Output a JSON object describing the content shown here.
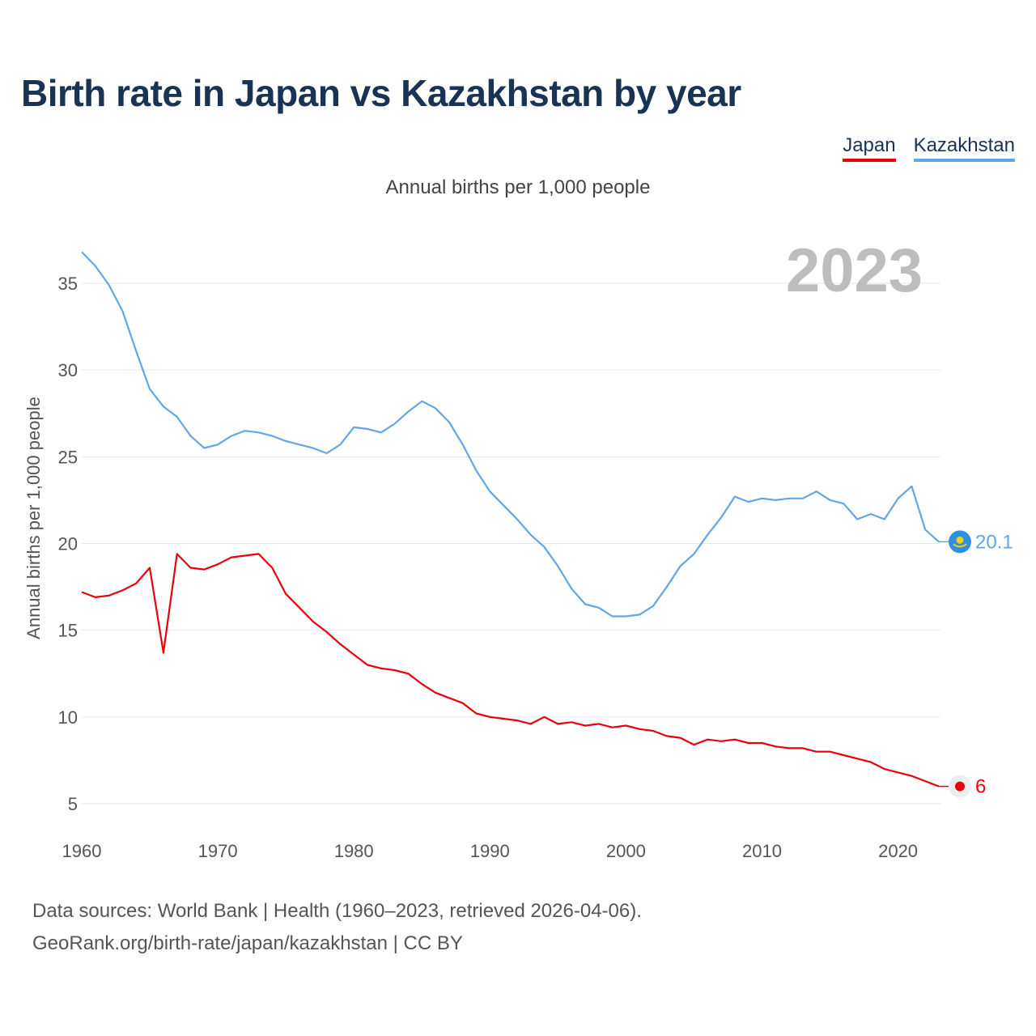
{
  "title": "Birth rate in Japan vs Kazakhstan by year",
  "legend": [
    {
      "name": "Japan",
      "color": "#e8000b"
    },
    {
      "name": "Kazakhstan",
      "color": "#62a6e6"
    }
  ],
  "footer": {
    "line1": "Data sources: World Bank | Health (1960–2023, retrieved 2026-04-06).",
    "line2": "GeoRank.org/birth-rate/japan/kazakhstan | CC BY"
  },
  "chart_data": {
    "type": "line",
    "title": "Birth rate in Japan vs Kazakhstan by year",
    "subtitle": "Annual births per 1,000 people",
    "xlabel": "",
    "ylabel": "Annual births per 1,000 people",
    "current_year_label": "2023",
    "xlim": [
      1960,
      2023
    ],
    "ylim": [
      3.5,
      38
    ],
    "yticks": [
      5,
      10,
      15,
      20,
      25,
      30,
      35
    ],
    "xticks": [
      1960,
      1970,
      1980,
      1990,
      2000,
      2010,
      2020
    ],
    "grid": true,
    "legend_position": "top-right",
    "x": [
      1960,
      1961,
      1962,
      1963,
      1964,
      1965,
      1966,
      1967,
      1968,
      1969,
      1970,
      1971,
      1972,
      1973,
      1974,
      1975,
      1976,
      1977,
      1978,
      1979,
      1980,
      1981,
      1982,
      1983,
      1984,
      1985,
      1986,
      1987,
      1988,
      1989,
      1990,
      1991,
      1992,
      1993,
      1994,
      1995,
      1996,
      1997,
      1998,
      1999,
      2000,
      2001,
      2002,
      2003,
      2004,
      2005,
      2006,
      2007,
      2008,
      2009,
      2010,
      2011,
      2012,
      2013,
      2014,
      2015,
      2016,
      2017,
      2018,
      2019,
      2020,
      2021,
      2022,
      2023
    ],
    "series": [
      {
        "name": "Japan",
        "color": "#e8000b",
        "end_label": "6",
        "values": [
          17.2,
          16.9,
          17.0,
          17.3,
          17.7,
          18.6,
          13.7,
          19.4,
          18.6,
          18.5,
          18.8,
          19.2,
          19.3,
          19.4,
          18.6,
          17.1,
          16.3,
          15.5,
          14.9,
          14.2,
          13.6,
          13.0,
          12.8,
          12.7,
          12.5,
          11.9,
          11.4,
          11.1,
          10.8,
          10.2,
          10.0,
          9.9,
          9.8,
          9.6,
          10.0,
          9.6,
          9.7,
          9.5,
          9.6,
          9.4,
          9.5,
          9.3,
          9.2,
          8.9,
          8.8,
          8.4,
          8.7,
          8.6,
          8.7,
          8.5,
          8.5,
          8.3,
          8.2,
          8.2,
          8.0,
          8.0,
          7.8,
          7.6,
          7.4,
          7.0,
          6.8,
          6.6,
          6.3,
          6.0
        ]
      },
      {
        "name": "Kazakhstan",
        "color": "#62a6e6",
        "end_label": "20.1",
        "values": [
          36.8,
          36.0,
          34.9,
          33.4,
          31.1,
          28.9,
          27.9,
          27.3,
          26.2,
          25.5,
          25.7,
          26.2,
          26.5,
          26.4,
          26.2,
          25.9,
          25.7,
          25.5,
          25.2,
          25.7,
          26.7,
          26.6,
          26.4,
          26.9,
          27.6,
          28.2,
          27.8,
          27.0,
          25.7,
          24.2,
          23.0,
          22.2,
          21.4,
          20.5,
          19.8,
          18.7,
          17.4,
          16.5,
          16.3,
          15.8,
          15.8,
          15.9,
          16.4,
          17.5,
          18.7,
          19.4,
          20.5,
          21.5,
          22.7,
          22.4,
          22.6,
          22.5,
          22.6,
          22.6,
          23.0,
          22.5,
          22.3,
          21.4,
          21.7,
          21.4,
          22.6,
          23.3,
          20.8,
          20.1
        ]
      }
    ]
  }
}
